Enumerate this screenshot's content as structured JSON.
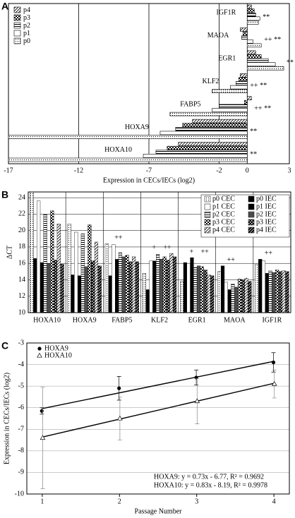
{
  "chart_data": [
    {
      "type": "hbar",
      "panel_label": "A",
      "categories": [
        "IGF1R",
        "MAOA",
        "EGR1",
        "KLF2",
        "FABP5",
        "HOXA9",
        "HOXA10"
      ],
      "series": [
        {
          "name": "p4",
          "pattern": "diagonal",
          "values": [
            0.3,
            -0.5,
            0.6,
            -0.5,
            0.3,
            -3.9,
            -4.9
          ]
        },
        {
          "name": "p3",
          "pattern": "checker",
          "values": [
            0.5,
            -0.3,
            1.0,
            -0.6,
            -0.2,
            -4.6,
            -5.7
          ]
        },
        {
          "name": "p2",
          "pattern": "hlines",
          "values": [
            0.6,
            -0.4,
            1.5,
            -0.8,
            -2.0,
            -5.1,
            -6.5
          ]
        },
        {
          "name": "p1",
          "pattern": "none",
          "values": [
            0.9,
            0.4,
            2.0,
            -1.2,
            -2.5,
            -6.2,
            -7.4
          ]
        },
        {
          "name": "p0",
          "pattern": "dots",
          "values": [
            0.8,
            1.0,
            2.6,
            -2.5,
            -5.5,
            -17,
            -17
          ]
        }
      ],
      "xlim": [
        -17,
        3
      ],
      "xticks": [
        -17,
        -12,
        -7,
        -2,
        0,
        3
      ],
      "grid": true,
      "xlabel": "Expression in CECs/IECs (log2)",
      "annotations": [
        {
          "text": "**",
          "category": "IGF1R"
        },
        {
          "text": "++",
          "category": "MAOA"
        },
        {
          "text": "**",
          "category": "MAOA"
        },
        {
          "text": "**",
          "category": "EGR1"
        },
        {
          "text": "++",
          "category": "KLF2"
        },
        {
          "text": "**",
          "category": "KLF2"
        },
        {
          "text": "++",
          "category": "FABP5"
        },
        {
          "text": "**",
          "category": "FABP5"
        },
        {
          "text": "**",
          "category": "HOXA9"
        },
        {
          "text": "**",
          "category": "HOXA10"
        }
      ]
    },
    {
      "type": "bar",
      "panel_label": "B",
      "categories": [
        "HOXA10",
        "HOXA9",
        "FABP5",
        "KLF2",
        "EGR1",
        "MAOA",
        "IGF1R"
      ],
      "series": [
        {
          "name": "p0 CEC",
          "pattern": "dots",
          "values": [
            24.7,
            20.8,
            18.4,
            14.8,
            13.8,
            15.0,
            15.9
          ]
        },
        {
          "name": "p0 IEC",
          "pattern": "solid",
          "values": [
            16.6,
            14.6,
            14.5,
            12.8,
            16.1,
            15.7,
            16.5
          ]
        },
        {
          "name": "p1 CEC",
          "pattern": "none",
          "values": [
            23.6,
            19.8,
            18.3,
            16.3,
            16.0,
            13.7,
            16.3
          ]
        },
        {
          "name": "p1 IEC",
          "pattern": "solid",
          "values": [
            16.1,
            14.5,
            16.5,
            16.3,
            16.7,
            12.8,
            14.8
          ]
        },
        {
          "name": "p2 CEC",
          "pattern": "hlines",
          "values": [
            22.0,
            19.6,
            17.3,
            17.1,
            15.5,
            13.5,
            15.1
          ]
        },
        {
          "name": "p2 IEC",
          "pattern": "hlines-dark",
          "values": [
            16.0,
            15.6,
            16.8,
            16.5,
            15.7,
            13.1,
            14.9
          ]
        },
        {
          "name": "p3 CEC",
          "pattern": "checker",
          "values": [
            22.4,
            20.7,
            17.0,
            16.8,
            15.6,
            14.1,
            15.2
          ]
        },
        {
          "name": "p3 IEC",
          "pattern": "checker-dark",
          "values": [
            16.4,
            16.3,
            16.2,
            16.4,
            15.2,
            14.0,
            15.0
          ]
        },
        {
          "name": "p4 CEC",
          "pattern": "diagonal",
          "values": [
            20.8,
            18.6,
            16.8,
            17.2,
            14.6,
            14.2,
            15.1
          ]
        },
        {
          "name": "p4 IEC",
          "pattern": "diagonal-dark",
          "values": [
            15.9,
            15.7,
            16.2,
            16.8,
            14.5,
            13.8,
            15.0
          ]
        }
      ],
      "ylim": [
        10,
        24.7
      ],
      "yticks": [
        10,
        12,
        14,
        16,
        18,
        20,
        22,
        24
      ],
      "ylabel": "ΔCT",
      "grid": true,
      "annotations": [
        {
          "text": "++",
          "category": "FABP5"
        },
        {
          "text": "+",
          "category": "KLF2"
        },
        {
          "text": "++",
          "category": "KLF2"
        },
        {
          "text": "+",
          "category": "EGR1"
        },
        {
          "text": "++",
          "category": "EGR1"
        },
        {
          "text": "++",
          "category": "MAOA"
        },
        {
          "text": "++",
          "category": "IGF1R"
        }
      ]
    },
    {
      "type": "scatter",
      "panel_label": "C",
      "x": [
        1,
        2,
        3,
        4
      ],
      "series": [
        {
          "name": "HOXA9",
          "marker": "circle",
          "values": [
            -6.15,
            -5.1,
            -4.6,
            -3.9
          ],
          "errors": [
            0.15,
            0.55,
            0.35,
            0.45
          ],
          "slope": 0.73,
          "intercept": -6.77,
          "fit_label": "HOXA9: y = 0.73x - 6.77, R² = 0.9692"
        },
        {
          "name": "HOXA10",
          "marker": "triangle",
          "values": [
            -7.4,
            -6.5,
            -5.7,
            -4.9
          ],
          "errors": [
            2.35,
            1.0,
            1.05,
            0.65
          ],
          "slope": 0.83,
          "intercept": -8.19,
          "fit_label": "HOXA10: y = 0.83x - 8.19, R² = 0.9978"
        }
      ],
      "xlim": [
        0.8,
        4.2
      ],
      "xticks": [
        1,
        2,
        3,
        4
      ],
      "ylim": [
        -10,
        -3
      ],
      "yticks": [
        -10,
        -9,
        -8,
        -7,
        -6,
        -5,
        -4,
        -3
      ],
      "xlabel": "Passage Number",
      "ylabel": "Expression in CECs/IECs (log2)",
      "grid": true
    }
  ]
}
